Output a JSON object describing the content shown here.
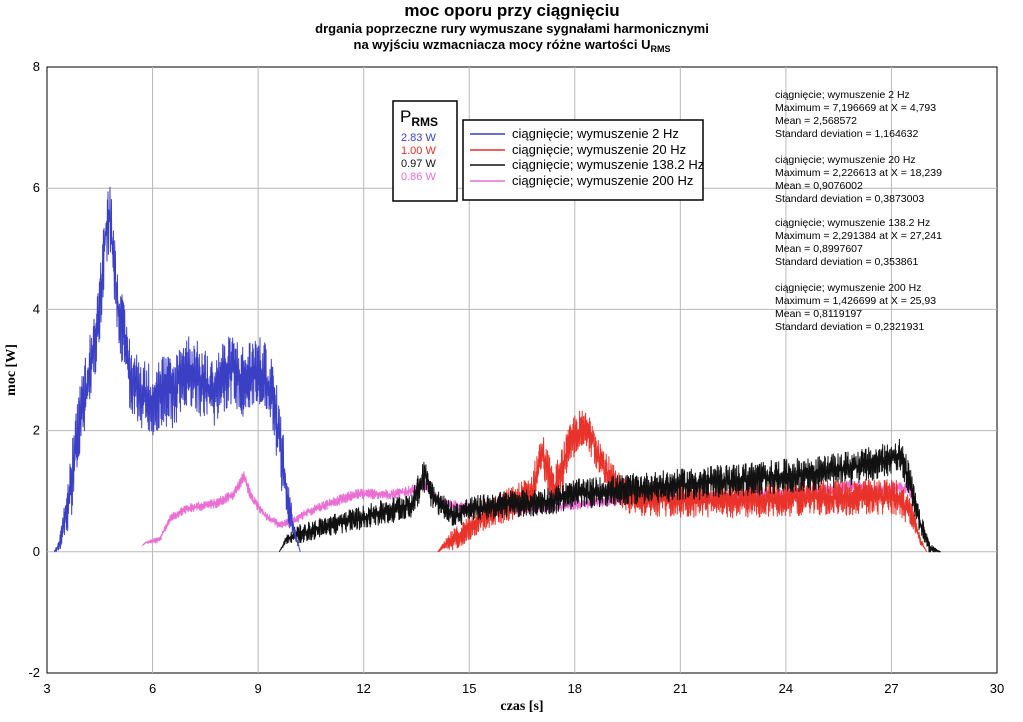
{
  "chart_data": {
    "type": "line",
    "title": "moc oporu przy ciągnięciu",
    "subtitle_line1": "drgania poprzeczne rury wymuszane sygnałami harmonicznymi",
    "subtitle_line2_prefix": "na wyjściu wzmacniacza mocy różne wartości U",
    "subtitle_line2_sub": "RMS",
    "xlabel": "czas [s]",
    "ylabel": "moc [W]",
    "xlim": [
      3,
      30
    ],
    "ylim": [
      -2,
      8
    ],
    "xticks": [
      3,
      6,
      9,
      12,
      15,
      18,
      21,
      24,
      27,
      30
    ],
    "xtick_labels": [
      "3",
      "6",
      "9",
      "12",
      "15",
      "18",
      "21",
      "24",
      "27",
      "30"
    ],
    "yticks": [
      -2,
      0,
      2,
      4,
      6,
      8
    ],
    "ytick_labels": [
      "-2",
      "0",
      "2",
      "4",
      "6",
      "8"
    ],
    "grid": true,
    "legend_position": "top-center",
    "series": [
      {
        "name": "ciągnięcie; wymuszenie 2 Hz",
        "color": "#3b3fc4",
        "noise": 0.6,
        "x": [
          3.2,
          3.35,
          3.6,
          3.9,
          4.2,
          4.45,
          4.65,
          4.79,
          4.95,
          5.15,
          5.4,
          5.7,
          6.0,
          6.3,
          6.6,
          6.85,
          7.1,
          7.4,
          7.7,
          8.0,
          8.3,
          8.6,
          8.9,
          9.15,
          9.4,
          9.6,
          9.8,
          10.0,
          10.2
        ],
        "y": [
          0.0,
          0.1,
          0.8,
          2.0,
          3.0,
          3.7,
          5.2,
          5.6,
          4.4,
          3.6,
          2.8,
          2.6,
          2.5,
          2.7,
          2.6,
          3.0,
          3.0,
          2.8,
          2.6,
          2.9,
          3.0,
          2.8,
          3.0,
          2.9,
          2.6,
          1.9,
          1.0,
          0.4,
          0.0
        ],
        "stats": {
          "header": "ciągnięcie; wymuszenie 2 Hz",
          "maximum": "Maximum = 7,196669 at X = 4,793",
          "mean": "Mean = 2,568572",
          "std": "Standard deviation = 1,164632"
        }
      },
      {
        "name": "ciągnięcie; wymuszenie 20 Hz",
        "color": "#e8322a",
        "noise": 0.35,
        "x": [
          14.1,
          14.3,
          14.8,
          15.3,
          15.8,
          16.4,
          16.8,
          17.0,
          17.1,
          17.4,
          17.7,
          18.0,
          18.24,
          18.5,
          18.8,
          19.2,
          19.7,
          20.5,
          21.5,
          22.5,
          23.5,
          24.5,
          25.5,
          26.5,
          27.2,
          27.6,
          27.8,
          28.0
        ],
        "y": [
          0.0,
          0.1,
          0.3,
          0.55,
          0.7,
          0.85,
          1.0,
          1.5,
          1.6,
          1.0,
          1.5,
          1.95,
          2.0,
          1.9,
          1.4,
          1.0,
          0.9,
          0.85,
          0.85,
          0.85,
          0.85,
          0.9,
          0.9,
          0.9,
          0.9,
          0.6,
          0.2,
          0.0
        ],
        "stats": {
          "header": "ciągnięcie; wymuszenie 20 Hz",
          "maximum": "Maximum = 2,226613 at X = 18,239",
          "mean": "Mean = 0,9076002",
          "std": "Standard deviation = 0,3873003"
        }
      },
      {
        "name": "ciągnięcie; wymuszenie 138.2 Hz",
        "color": "#111111",
        "noise": 0.28,
        "x": [
          9.6,
          9.8,
          10.2,
          10.8,
          11.5,
          12.2,
          12.9,
          13.4,
          13.75,
          13.9,
          14.2,
          14.6,
          15.0,
          15.6,
          16.2,
          16.8,
          17.4,
          18.0,
          19.0,
          20.0,
          21.0,
          22.0,
          23.0,
          24.0,
          25.0,
          26.0,
          26.8,
          27.24,
          27.5,
          27.8,
          28.1,
          28.4
        ],
        "y": [
          0.0,
          0.2,
          0.3,
          0.4,
          0.5,
          0.6,
          0.7,
          0.8,
          1.3,
          1.0,
          0.75,
          0.6,
          0.7,
          0.75,
          0.8,
          0.8,
          0.85,
          0.95,
          1.0,
          1.05,
          1.1,
          1.15,
          1.2,
          1.25,
          1.3,
          1.4,
          1.5,
          1.6,
          1.2,
          0.5,
          0.05,
          0.0
        ],
        "stats": {
          "header": "ciągnięcie; wymuszenie 138.2 Hz",
          "maximum": "Maximum = 2,291384 at X = 27,241",
          "mean": "Mean = 0,8997607",
          "std": "Standard deviation = 0,353861"
        }
      },
      {
        "name": "ciągnięcie; wymuszenie 200 Hz",
        "color": "#ea6fd3",
        "noise": 0.1,
        "x": [
          5.7,
          5.8,
          6.2,
          6.5,
          6.9,
          7.3,
          7.8,
          8.3,
          8.6,
          8.8,
          9.2,
          9.6,
          10.0,
          10.4,
          10.8,
          11.3,
          11.8,
          12.3,
          12.8,
          13.3,
          13.8,
          14.2,
          14.8,
          15.4,
          16.0,
          16.8,
          17.6,
          18.4,
          19.2,
          20.0,
          21.0,
          22.0,
          23.0,
          24.0,
          25.0,
          25.9,
          26.5,
          27.0,
          27.5,
          27.8,
          28.1
        ],
        "y": [
          0.1,
          0.15,
          0.2,
          0.55,
          0.7,
          0.75,
          0.8,
          0.95,
          1.25,
          0.9,
          0.6,
          0.45,
          0.5,
          0.65,
          0.75,
          0.85,
          0.95,
          0.95,
          0.95,
          1.0,
          1.1,
          0.8,
          0.75,
          0.7,
          0.7,
          0.7,
          0.75,
          0.8,
          0.85,
          0.85,
          0.9,
          0.9,
          0.95,
          0.95,
          1.0,
          1.1,
          1.0,
          1.05,
          1.05,
          0.5,
          0.05
        ],
        "stats": {
          "header": "ciągnięcie; wymuszenie 200 Hz",
          "maximum": "Maximum = 1,426699 at X = 25,93",
          "mean": "Mean = 0,8119197",
          "std": "Standard deviation = 0,2321931"
        }
      }
    ],
    "prms": {
      "title_main": "P",
      "title_sub": "RMS",
      "values": [
        {
          "text": "2.83 W",
          "color": "#3b3fc4"
        },
        {
          "text": "1.00 W",
          "color": "#e8322a"
        },
        {
          "text": "0.97 W",
          "color": "#111111"
        },
        {
          "text": "0.86 W",
          "color": "#ea6fd3"
        }
      ]
    }
  }
}
